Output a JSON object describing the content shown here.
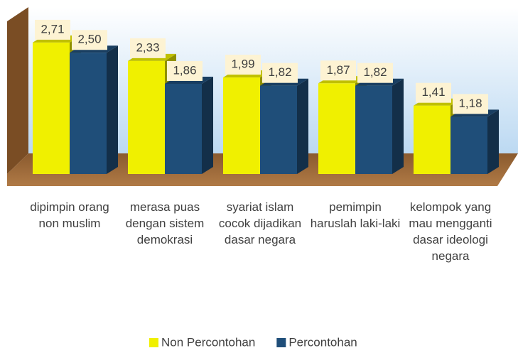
{
  "chart_data": {
    "type": "bar3d",
    "categories": [
      "dipimpin orang non muslim",
      "merasa puas dengan sistem demokrasi",
      "syariat islam cocok dijadikan dasar negara",
      "pemimpin haruslah laki-laki",
      "kelompok yang mau mengganti dasar ideologi negara"
    ],
    "series": [
      {
        "name": "Non Percontohan",
        "color": "#f0f000",
        "values": [
          2.71,
          2.33,
          1.99,
          1.87,
          1.41
        ],
        "value_labels": [
          "2,71",
          "2,33",
          "1,99",
          "1,87",
          "1,41"
        ]
      },
      {
        "name": "Percontohan",
        "color": "#1f4e79",
        "values": [
          2.5,
          1.86,
          1.82,
          1.82,
          1.18
        ],
        "value_labels": [
          "2,50",
          "1,86",
          "1,82",
          "1,82",
          "1,18"
        ]
      }
    ],
    "legend": "bottom"
  }
}
